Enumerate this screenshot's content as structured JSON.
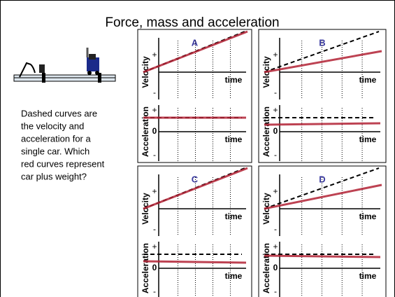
{
  "title": "Force, mass and acceleration",
  "caption": [
    "Dashed curves are",
    "the velocity and",
    "acceleration for a",
    "single car.  Which",
    "red curves represent",
    "car plus weight?"
  ],
  "panels": [
    {
      "label": "A",
      "velocity": {
        "label": "Velocity",
        "plus": "+",
        "minus": "-",
        "time": "time"
      },
      "acceleration": {
        "label": "Acceleration",
        "plus": "+",
        "zero": "0",
        "minus": "-",
        "time": "time"
      }
    },
    {
      "label": "B",
      "velocity": {
        "label": "Velocity",
        "plus": "+",
        "minus": "-",
        "time": "time"
      },
      "acceleration": {
        "label": "Acceleration",
        "plus": "+",
        "zero": "0",
        "minus": "-",
        "time": "time"
      }
    },
    {
      "label": "C",
      "velocity": {
        "label": "Velocity",
        "plus": "+",
        "minus": "-",
        "time": "time"
      },
      "acceleration": {
        "label": "Acceleration",
        "plus": "+",
        "zero": "0",
        "minus": "-",
        "time": "time"
      }
    },
    {
      "label": "D",
      "velocity": {
        "label": "Velocity",
        "plus": "+",
        "minus": "-",
        "time": "time"
      },
      "acceleration": {
        "label": "Acceleration",
        "plus": "+",
        "zero": "0",
        "minus": "-",
        "time": "time"
      }
    }
  ]
}
